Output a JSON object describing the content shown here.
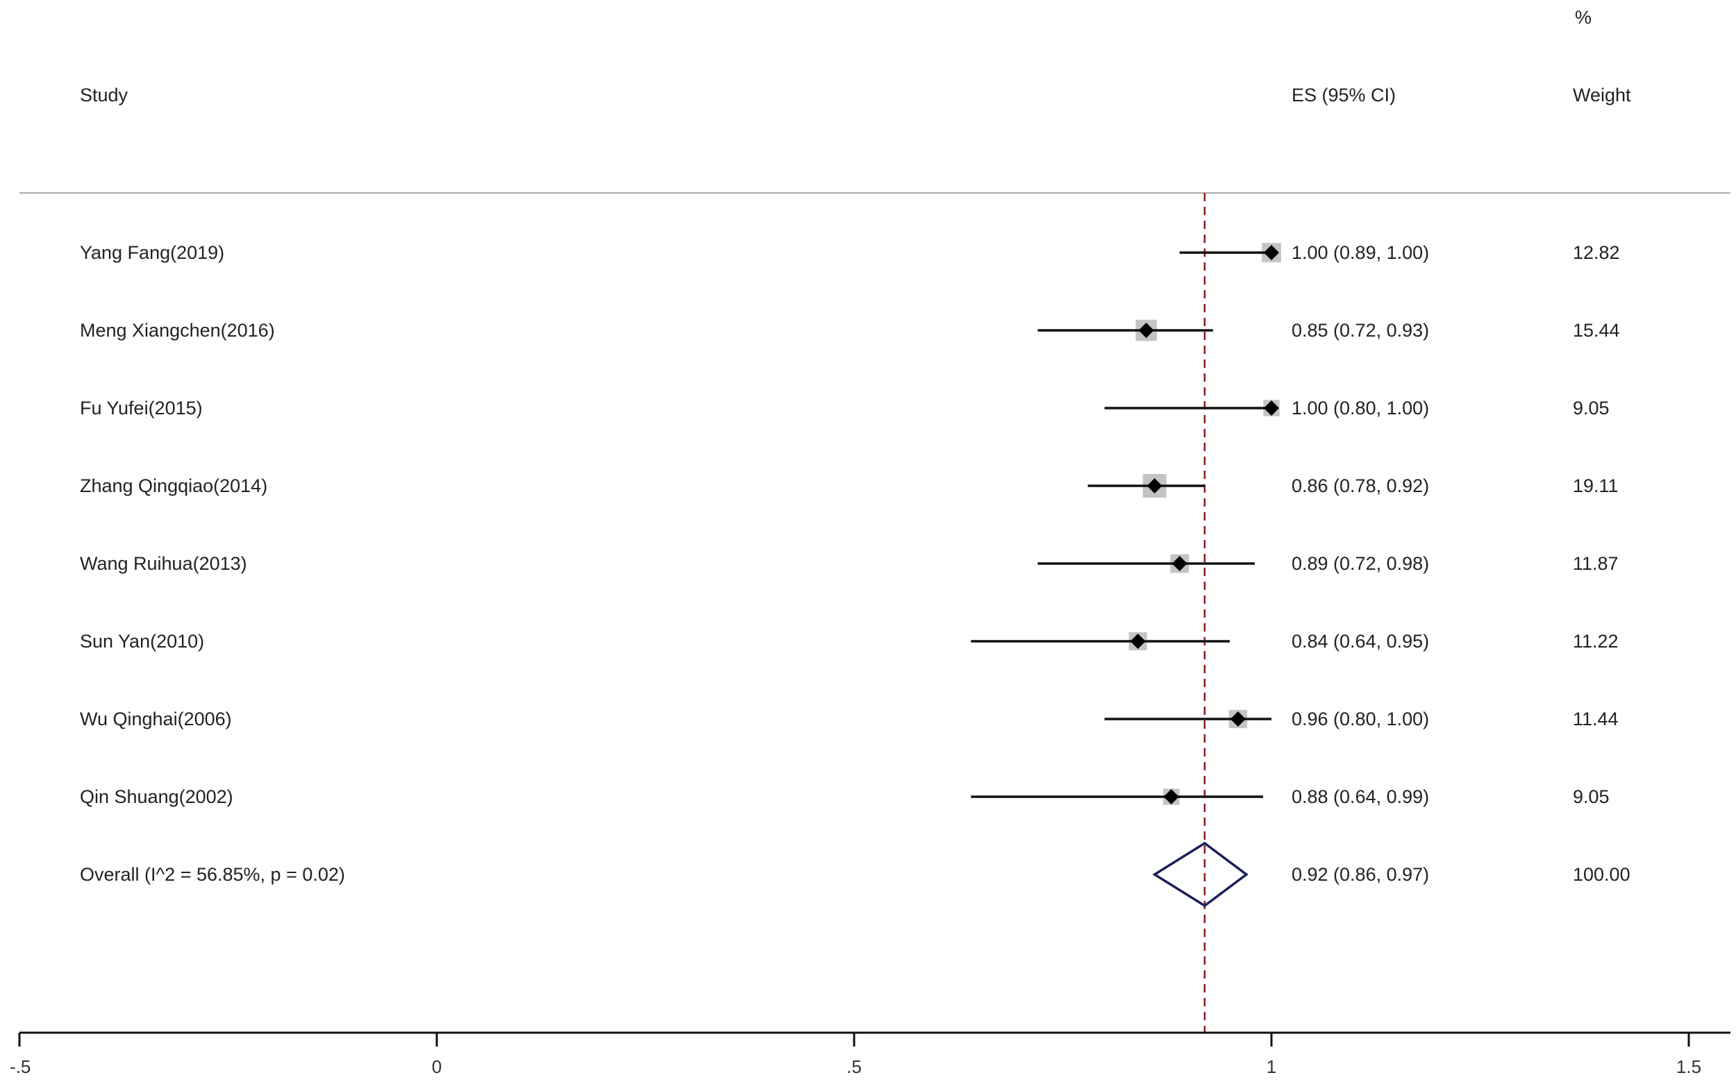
{
  "chart_data": {
    "type": "forest",
    "title": "",
    "xlabel": "",
    "ylabel": "",
    "headers": {
      "study": "Study",
      "es": "ES (95% CI)",
      "weight_top": "%",
      "weight": "Weight"
    },
    "xlim": [
      -0.5,
      1.5
    ],
    "xticks": [
      {
        "value": -0.5,
        "label": "-.5"
      },
      {
        "value": 0,
        "label": "0"
      },
      {
        "value": 0.5,
        "label": ".5"
      },
      {
        "value": 1,
        "label": "1"
      },
      {
        "value": 1.5,
        "label": "1.5"
      }
    ],
    "reference_line": 0.92,
    "studies": [
      {
        "label": "Yang Fang(2019)",
        "es": 1.0,
        "lo": 0.89,
        "hi": 1.0,
        "weight": 12.82,
        "es_text": "1.00 (0.89, 1.00)",
        "weight_text": "12.82"
      },
      {
        "label": "Meng Xiangchen(2016)",
        "es": 0.85,
        "lo": 0.72,
        "hi": 0.93,
        "weight": 15.44,
        "es_text": "0.85 (0.72, 0.93)",
        "weight_text": "15.44"
      },
      {
        "label": "Fu Yufei(2015)",
        "es": 1.0,
        "lo": 0.8,
        "hi": 1.0,
        "weight": 9.05,
        "es_text": "1.00 (0.80, 1.00)",
        "weight_text": "9.05"
      },
      {
        "label": "Zhang Qingqiao(2014)",
        "es": 0.86,
        "lo": 0.78,
        "hi": 0.92,
        "weight": 19.11,
        "es_text": "0.86 (0.78, 0.92)",
        "weight_text": "19.11"
      },
      {
        "label": "Wang Ruihua(2013)",
        "es": 0.89,
        "lo": 0.72,
        "hi": 0.98,
        "weight": 11.87,
        "es_text": "0.89 (0.72, 0.98)",
        "weight_text": "11.87"
      },
      {
        "label": "Sun Yan(2010)",
        "es": 0.84,
        "lo": 0.64,
        "hi": 0.95,
        "weight": 11.22,
        "es_text": "0.84 (0.64, 0.95)",
        "weight_text": "11.22"
      },
      {
        "label": "Wu Qinghai(2006)",
        "es": 0.96,
        "lo": 0.8,
        "hi": 1.0,
        "weight": 11.44,
        "es_text": "0.96 (0.80, 1.00)",
        "weight_text": "11.44"
      },
      {
        "label": "Qin Shuang(2002)",
        "es": 0.88,
        "lo": 0.64,
        "hi": 0.99,
        "weight": 9.05,
        "es_text": "0.88 (0.64, 0.99)",
        "weight_text": "9.05"
      }
    ],
    "overall": {
      "label": "Overall  (I^2 = 56.85%, p = 0.02)",
      "es": 0.92,
      "lo": 0.86,
      "hi": 0.97,
      "weight": 100.0,
      "es_text": "0.92 (0.86, 0.97)",
      "weight_text": "100.00"
    },
    "colors": {
      "text": "#222222",
      "line": "#111111",
      "marker": "#000000",
      "box": "#c4c4c4",
      "diamond": "#1b1f5a",
      "reference": "#8b1a1a",
      "rule": "#aaaaaa"
    }
  }
}
